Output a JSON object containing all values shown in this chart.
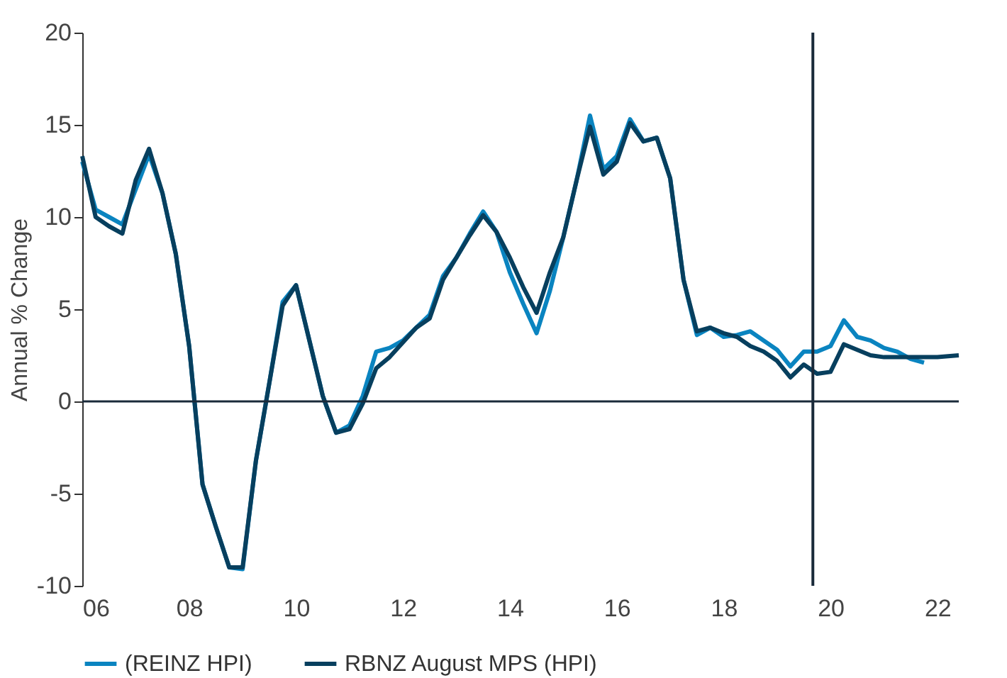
{
  "chart_data": {
    "type": "line",
    "ylabel": "Annual % Change",
    "xlim": [
      2006,
      2022.4
    ],
    "ylim": [
      -10,
      20
    ],
    "xticks": [
      {
        "value": 2006,
        "label": "06"
      },
      {
        "value": 2008,
        "label": "08"
      },
      {
        "value": 2010,
        "label": "10"
      },
      {
        "value": 2012,
        "label": "12"
      },
      {
        "value": 2014,
        "label": "14"
      },
      {
        "value": 2016,
        "label": "16"
      },
      {
        "value": 2018,
        "label": "18"
      },
      {
        "value": 2020,
        "label": "20"
      },
      {
        "value": 2022,
        "label": "22"
      }
    ],
    "yticks": [
      -10,
      -5,
      0,
      5,
      10,
      15,
      20
    ],
    "grid": false,
    "legend": "bottom",
    "line_style": "solid",
    "marker": "none",
    "ref_lines": [
      {
        "axis": "x",
        "value": 2019.67,
        "color": "#1a2a3a"
      },
      {
        "axis": "y",
        "value": 0,
        "color": "#1a2a3a"
      }
    ],
    "series": [
      {
        "name": "(REINZ HPI)",
        "color": "#0a84c0",
        "x": [
          2006.0,
          2006.25,
          2006.5,
          2006.75,
          2007.0,
          2007.25,
          2007.5,
          2007.75,
          2008.0,
          2008.25,
          2008.5,
          2008.75,
          2009.0,
          2009.25,
          2009.5,
          2009.75,
          2010.0,
          2010.25,
          2010.5,
          2010.75,
          2011.0,
          2011.25,
          2011.5,
          2011.75,
          2012.0,
          2012.25,
          2012.5,
          2012.75,
          2013.0,
          2013.25,
          2013.5,
          2013.75,
          2014.0,
          2014.25,
          2014.5,
          2014.75,
          2015.0,
          2015.25,
          2015.5,
          2015.75,
          2016.0,
          2016.25,
          2016.5,
          2016.75,
          2017.0,
          2017.25,
          2017.5,
          2017.75,
          2018.0,
          2018.25,
          2018.5,
          2018.75,
          2019.0,
          2019.25,
          2019.5,
          2019.75,
          2020.0,
          2020.25,
          2020.5,
          2020.75,
          2021.0,
          2021.25,
          2021.5,
          2021.75
        ],
        "values": [
          13.0,
          10.4,
          10.0,
          9.6,
          11.5,
          13.4,
          11.3,
          8.0,
          3.0,
          -4.5,
          -6.8,
          -9.0,
          -9.1,
          -3.2,
          1.0,
          5.4,
          6.3,
          3.3,
          0.3,
          -1.7,
          -1.3,
          0.3,
          2.7,
          2.9,
          3.3,
          4.0,
          4.7,
          6.8,
          7.8,
          9.1,
          10.3,
          9.2,
          7.0,
          5.3,
          3.7,
          6.0,
          8.9,
          12.0,
          15.5,
          12.6,
          13.3,
          15.3,
          14.1,
          14.3,
          12.1,
          6.6,
          3.6,
          4.0,
          3.5,
          3.6,
          3.8,
          3.3,
          2.8,
          1.9,
          2.7,
          2.7,
          3.0,
          4.4,
          3.5,
          3.3,
          2.9,
          2.7,
          2.3,
          2.1
        ]
      },
      {
        "name": "RBNZ August MPS (HPI)",
        "color": "#073f5e",
        "x": [
          2006.0,
          2006.25,
          2006.5,
          2006.75,
          2007.0,
          2007.25,
          2007.5,
          2007.75,
          2008.0,
          2008.25,
          2008.5,
          2008.75,
          2009.0,
          2009.25,
          2009.5,
          2009.75,
          2010.0,
          2010.25,
          2010.5,
          2010.75,
          2011.0,
          2011.25,
          2011.5,
          2011.75,
          2012.0,
          2012.25,
          2012.5,
          2012.75,
          2013.0,
          2013.25,
          2013.5,
          2013.75,
          2014.0,
          2014.25,
          2014.5,
          2014.75,
          2015.0,
          2015.25,
          2015.5,
          2015.75,
          2016.0,
          2016.25,
          2016.5,
          2016.75,
          2017.0,
          2017.25,
          2017.5,
          2017.75,
          2018.0,
          2018.25,
          2018.5,
          2018.75,
          2019.0,
          2019.25,
          2019.5,
          2019.75,
          2020.0,
          2020.25,
          2020.5,
          2020.75,
          2021.0,
          2021.25,
          2021.5,
          2021.75,
          2022.0,
          2022.4
        ],
        "values": [
          13.3,
          10.0,
          9.5,
          9.1,
          12.0,
          13.7,
          11.3,
          8.0,
          3.0,
          -4.5,
          -6.8,
          -9.0,
          -9.0,
          -3.2,
          1.0,
          5.2,
          6.3,
          3.3,
          0.3,
          -1.7,
          -1.5,
          -0.1,
          1.8,
          2.4,
          3.2,
          4.0,
          4.5,
          6.6,
          7.8,
          9.0,
          10.1,
          9.2,
          7.8,
          6.2,
          4.8,
          7.0,
          8.9,
          12.0,
          14.9,
          12.3,
          13.0,
          15.1,
          14.1,
          14.3,
          12.1,
          6.6,
          3.8,
          4.0,
          3.7,
          3.5,
          3.0,
          2.7,
          2.2,
          1.3,
          2.0,
          1.5,
          1.6,
          3.1,
          2.8,
          2.5,
          2.4,
          2.4,
          2.4,
          2.4,
          2.4,
          2.5
        ]
      }
    ]
  }
}
